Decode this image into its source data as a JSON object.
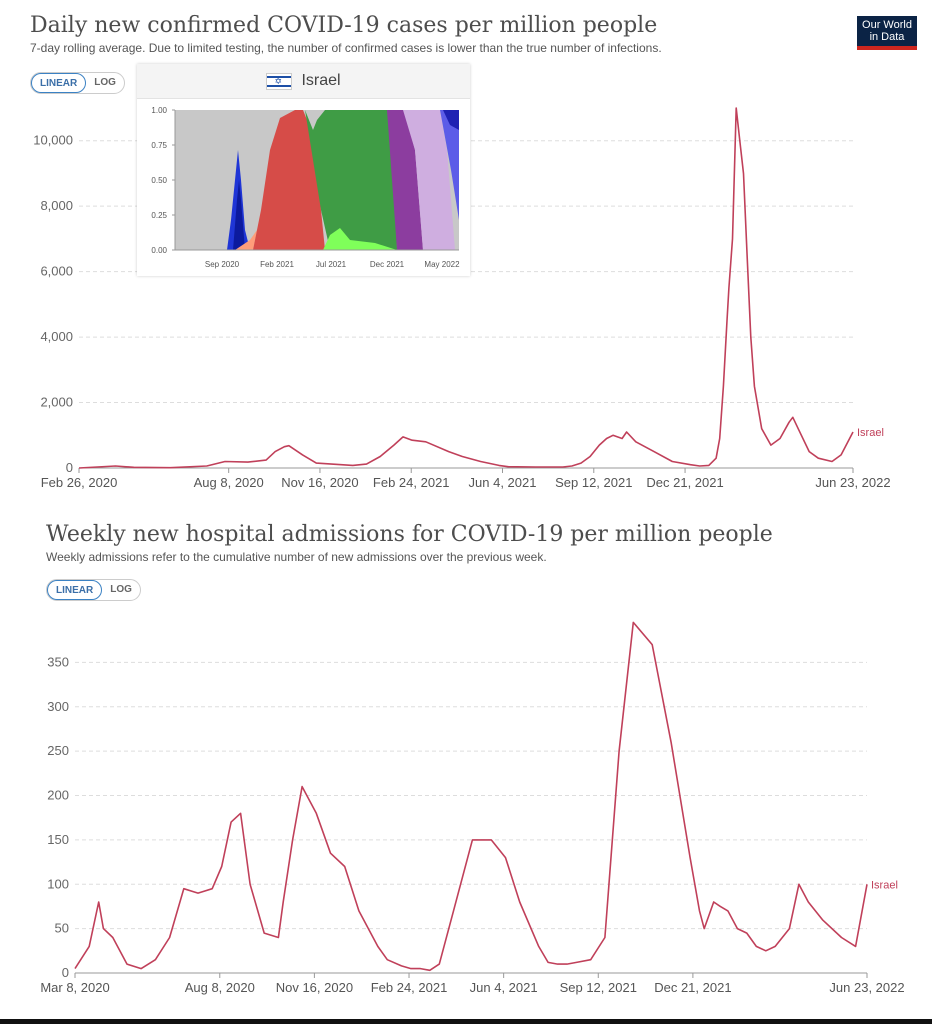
{
  "logo": {
    "line1": "Our World",
    "line2": "in Data"
  },
  "colors": {
    "series": "#c0405a",
    "grid": "#dddddd",
    "axis": "#666666"
  },
  "chart_data": [
    {
      "type": "line",
      "title": "Daily new confirmed COVID-19 cases per million people",
      "subtitle": "7-day rolling average. Due to limited testing, the number of confirmed cases is lower than the true number of infections.",
      "scale_options": [
        "LINEAR",
        "LOG"
      ],
      "active_scale": "LINEAR",
      "x_tick_labels": [
        "Feb 26, 2020",
        "Aug 8, 2020",
        "Nov 16, 2020",
        "Feb 24, 2021",
        "Jun 4, 2021",
        "Sep 12, 2021",
        "Dec 21, 2021",
        "Jun 23, 2022"
      ],
      "x_tick_days": [
        0,
        164,
        264,
        364,
        464,
        564,
        664,
        848
      ],
      "y_ticks": [
        0,
        2000,
        4000,
        6000,
        8000,
        10000
      ],
      "y_tick_labels": [
        "0",
        "2,000",
        "4,000",
        "6,000",
        "8,000",
        "10,000"
      ],
      "ylim": [
        0,
        11000
      ],
      "xlim": [
        0,
        848
      ],
      "series": [
        {
          "name": "Israel",
          "days": [
            0,
            20,
            40,
            60,
            100,
            140,
            160,
            185,
            205,
            215,
            225,
            230,
            245,
            260,
            300,
            315,
            330,
            345,
            355,
            365,
            380,
            405,
            420,
            440,
            460,
            470,
            500,
            530,
            540,
            550,
            560,
            570,
            578,
            585,
            590,
            595,
            600,
            610,
            630,
            650,
            670,
            680,
            690,
            698,
            702,
            706,
            710,
            712,
            716,
            720,
            724,
            728,
            732,
            736,
            740,
            748,
            758,
            768,
            778,
            782,
            788,
            800,
            810,
            825,
            835,
            848
          ],
          "values": [
            0,
            30,
            60,
            20,
            10,
            60,
            200,
            180,
            240,
            500,
            650,
            680,
            400,
            150,
            80,
            120,
            350,
            700,
            950,
            850,
            800,
            500,
            350,
            200,
            80,
            40,
            30,
            30,
            60,
            150,
            350,
            700,
            900,
            1000,
            950,
            900,
            1100,
            800,
            500,
            200,
            100,
            60,
            80,
            300,
            900,
            2500,
            4500,
            5500,
            7000,
            11000,
            10000,
            9000,
            6500,
            4000,
            2500,
            1200,
            700,
            900,
            1400,
            1550,
            1200,
            500,
            300,
            200,
            400,
            1100
          ]
        }
      ]
    },
    {
      "type": "line",
      "title": "Weekly new hospital admissions for COVID-19 per million people",
      "subtitle": "Weekly admissions refer to the cumulative number of new admissions over the previous week.",
      "scale_options": [
        "LINEAR",
        "LOG"
      ],
      "active_scale": "LINEAR",
      "x_tick_labels": [
        "Mar 8, 2020",
        "Aug 8, 2020",
        "Nov 16, 2020",
        "Feb 24, 2021",
        "Jun 4, 2021",
        "Sep 12, 2021",
        "Dec 21, 2021",
        "Jun 23, 2022"
      ],
      "x_tick_days": [
        0,
        153,
        253,
        353,
        453,
        553,
        653,
        837
      ],
      "y_ticks": [
        0,
        50,
        100,
        150,
        200,
        250,
        300,
        350
      ],
      "y_tick_labels": [
        "0",
        "50",
        "100",
        "150",
        "200",
        "250",
        "300",
        "350"
      ],
      "ylim": [
        0,
        400
      ],
      "xlim": [
        0,
        837
      ],
      "series": [
        {
          "name": "Israel",
          "days": [
            0,
            15,
            25,
            30,
            40,
            55,
            70,
            85,
            100,
            115,
            130,
            145,
            155,
            165,
            175,
            185,
            200,
            215,
            220,
            230,
            240,
            255,
            270,
            285,
            300,
            320,
            330,
            345,
            355,
            365,
            375,
            385,
            400,
            420,
            440,
            455,
            470,
            490,
            500,
            510,
            520,
            530,
            545,
            560,
            575,
            590,
            610,
            630,
            650,
            660,
            665,
            675,
            682,
            690,
            700,
            710,
            720,
            730,
            740,
            755,
            765,
            775,
            790,
            810,
            825,
            837
          ],
          "values": [
            5,
            30,
            80,
            50,
            40,
            10,
            5,
            15,
            40,
            95,
            90,
            95,
            120,
            170,
            180,
            100,
            45,
            40,
            80,
            150,
            210,
            180,
            135,
            120,
            70,
            30,
            15,
            8,
            5,
            5,
            3,
            10,
            70,
            150,
            150,
            130,
            80,
            30,
            12,
            10,
            10,
            12,
            15,
            40,
            250,
            395,
            370,
            260,
            130,
            70,
            50,
            80,
            75,
            70,
            50,
            45,
            30,
            25,
            30,
            50,
            100,
            80,
            60,
            40,
            30,
            100
          ]
        }
      ]
    }
  ],
  "inset": {
    "country": "Israel",
    "y_tick_labels": [
      "1.00",
      "0.75",
      "0.50",
      "0.25",
      "0.00"
    ],
    "x_tick_labels": [
      "Sep 2020",
      "Feb 2021",
      "Jul 2021",
      "Dec 2021",
      "May 2022"
    ]
  }
}
